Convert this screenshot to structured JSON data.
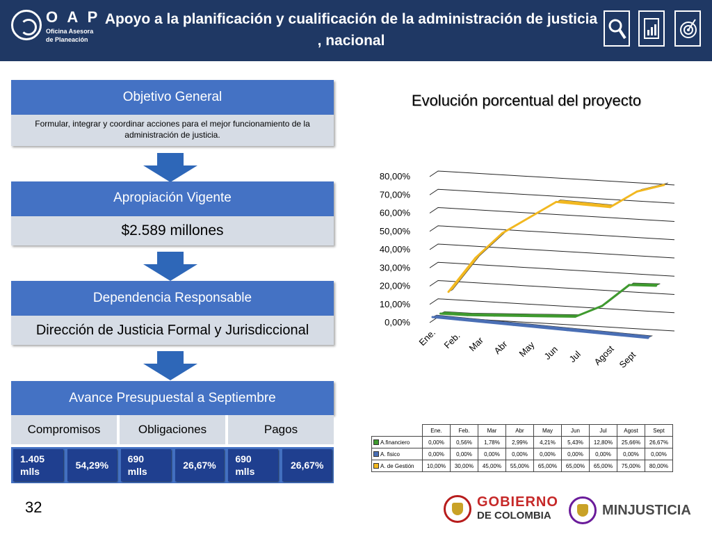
{
  "header": {
    "logo_name": "O A P",
    "logo_subtitle": "Oficina Asesora de Planeación",
    "title": "Apoyo a la planificación y cualificación de la administración de justicia , nacional",
    "icons": [
      "magnifier-icon",
      "document-chart-icon",
      "target-icon"
    ]
  },
  "left": {
    "objetivo": {
      "heading": "Objetivo General",
      "text": "Formular, integrar y coordinar acciones para el mejor funcionamiento de la administración de justicia."
    },
    "apropiacion": {
      "heading": "Apropiación Vigente",
      "value": "$2.589 millones"
    },
    "dependencia": {
      "heading": "Dependencia Responsable",
      "value": "Dirección de Justicia Formal y Jurisdiccional"
    },
    "avance": {
      "heading": "Avance Presupuestal a Septiembre",
      "labels": [
        "Compromisos",
        "Obligaciones",
        "Pagos"
      ],
      "amounts": [
        "1.405\nmlls",
        "690\nmlls",
        "690\nmlls"
      ],
      "percents": [
        "54,29%",
        "26,67%",
        "26,67%"
      ]
    }
  },
  "chart_data": {
    "type": "line",
    "title": "Evolución porcentual del proyecto",
    "categories": [
      "Ene.",
      "Feb.",
      "Mar",
      "Abr",
      "May",
      "Jun",
      "Jul",
      "Agost",
      "Sept"
    ],
    "y_ticks": [
      "0,00%",
      "10,00%",
      "20,00%",
      "30,00%",
      "40,00%",
      "50,00%",
      "60,00%",
      "70,00%",
      "80,00%"
    ],
    "ylim": [
      0,
      80
    ],
    "grid": true,
    "series": [
      {
        "name": "A.financiero",
        "color": "#3f9a2f",
        "values": [
          0.0,
          0.56,
          1.78,
          2.99,
          4.21,
          5.43,
          12.8,
          25.66,
          26.67
        ]
      },
      {
        "name": "A. fisico",
        "color": "#4a6fb5",
        "values": [
          0.0,
          0.0,
          0.0,
          0.0,
          0.0,
          0.0,
          0.0,
          0.0,
          0.0
        ]
      },
      {
        "name": "A. de Gestión",
        "color": "#f2b820",
        "values": [
          10.0,
          30.0,
          45.0,
          55.0,
          65.0,
          65.0,
          65.0,
          75.0,
          80.0
        ]
      }
    ],
    "table": {
      "headers": [
        "Ene.",
        "Feb.",
        "Mar",
        "Abr",
        "May",
        "Jun",
        "Jul",
        "Agost",
        "Sept"
      ],
      "rows": [
        {
          "label": "A.financiero",
          "color": "#3f9a2f",
          "cells": [
            "0,00%",
            "0,56%",
            "1,78%",
            "2,99%",
            "4,21%",
            "5,43%",
            "12,80%",
            "25,66%",
            "26,67%"
          ]
        },
        {
          "label": "A. fisico",
          "color": "#4a6fb5",
          "cells": [
            "0,00%",
            "0,00%",
            "0,00%",
            "0,00%",
            "0,00%",
            "0,00%",
            "0,00%",
            "0,00%",
            "0,00%"
          ]
        },
        {
          "label": "A. de Gestión",
          "color": "#f2b820",
          "cells": [
            "10,00%",
            "30,00%",
            "45,00%",
            "55,00%",
            "65,00%",
            "65,00%",
            "65,00%",
            "75,00%",
            "80,00%"
          ]
        }
      ]
    }
  },
  "footer": {
    "page_number": "32",
    "gobierno_line1": "GOBIERNO",
    "gobierno_line2": "DE COLOMBIA",
    "minjusticia": "MINJUSTICIA"
  }
}
